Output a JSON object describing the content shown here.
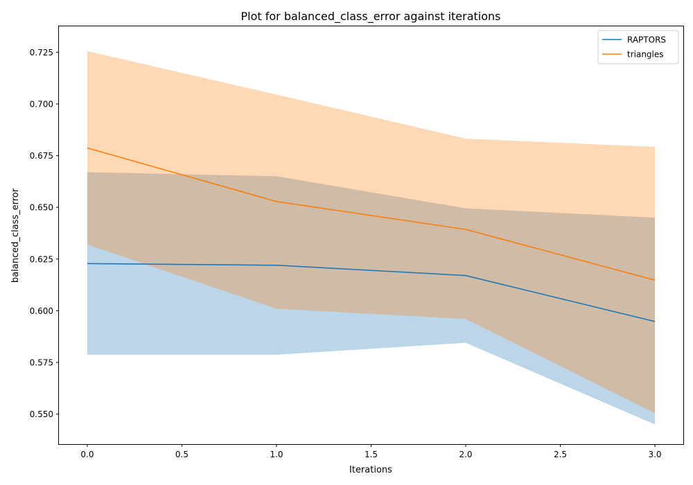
{
  "chart_data": {
    "type": "line",
    "title": "Plot for balanced_class_error against iterations",
    "xlabel": "Iterations",
    "ylabel": "balanced_class_error",
    "xlim": [
      -0.15,
      3.15
    ],
    "ylim": [
      0.5355,
      0.7375
    ],
    "xticks": [
      0.0,
      0.5,
      1.0,
      1.5,
      2.0,
      2.5,
      3.0
    ],
    "xtick_labels": [
      "0.0",
      "0.5",
      "1.0",
      "1.5",
      "2.0",
      "2.5",
      "3.0"
    ],
    "yticks": [
      0.55,
      0.575,
      0.6,
      0.625,
      0.65,
      0.675,
      0.7,
      0.725
    ],
    "ytick_labels": [
      "0.550",
      "0.575",
      "0.600",
      "0.625",
      "0.650",
      "0.675",
      "0.700",
      "0.725"
    ],
    "grid": false,
    "legend_position": "top-right",
    "x": [
      0,
      1,
      2,
      3
    ],
    "series": [
      {
        "name": "RAPTORS",
        "color": "#1f77b4",
        "band_color": "#1f77b4",
        "values": [
          0.6228,
          0.622,
          0.617,
          0.5948
        ],
        "lower": [
          0.5787,
          0.5787,
          0.5845,
          0.545
        ],
        "upper": [
          0.667,
          0.665,
          0.6495,
          0.645
        ]
      },
      {
        "name": "triangles",
        "color": "#ff7f0e",
        "band_color": "#ff7f0e",
        "values": [
          0.6787,
          0.6528,
          0.6393,
          0.6148
        ],
        "lower": [
          0.632,
          0.601,
          0.596,
          0.5505
        ],
        "upper": [
          0.7255,
          0.7045,
          0.6832,
          0.6792
        ]
      }
    ]
  }
}
